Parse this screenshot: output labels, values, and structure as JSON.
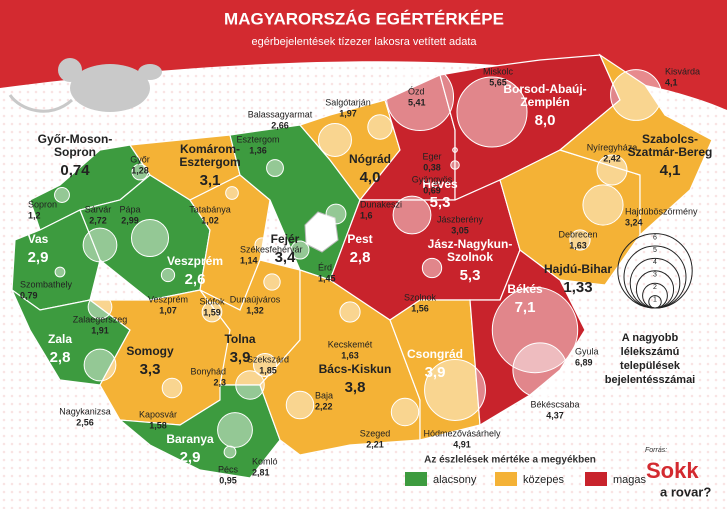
{
  "header": {
    "title": "MAGYARORSZÁG EGÉRTÉRKÉPE",
    "subtitle": "egérbejelentések tízezer lakosra vetített adata"
  },
  "counties": [
    {
      "name_lines": [
        "Győr-Moson-",
        "Sopron"
      ],
      "value_label": "0,74",
      "color": "#3d9b3f"
    },
    {
      "name_lines": [
        "Vas"
      ],
      "value_label": "2,9",
      "color": "#3d9b3f"
    },
    {
      "name_lines": [
        "Veszprém"
      ],
      "value_label": "2,6",
      "color": "#3d9b3f"
    },
    {
      "name_lines": [
        "Komárom-",
        "Esztergom"
      ],
      "value_label": "3,1",
      "color": "#f4b236"
    },
    {
      "name_lines": [
        "Zala"
      ],
      "value_label": "2,8",
      "color": "#3d9b3f"
    },
    {
      "name_lines": [
        "Somogy"
      ],
      "value_label": "3,3",
      "color": "#f4b236"
    },
    {
      "name_lines": [
        "Fejér"
      ],
      "value_label": "3,4",
      "color": "#f4b236"
    },
    {
      "name_lines": [
        "Pest"
      ],
      "value_label": "2,8",
      "color": "#3d9b3f"
    },
    {
      "name_lines": [
        "Nógrád"
      ],
      "value_label": "4,0",
      "color": "#f4b236"
    },
    {
      "name_lines": [
        "Tolna"
      ],
      "value_label": "3,9",
      "color": "#f4b236"
    },
    {
      "name_lines": [
        "Baranya"
      ],
      "value_label": "2,9",
      "color": "#3d9b3f"
    },
    {
      "name_lines": [
        "Bács-Kiskun"
      ],
      "value_label": "3,8",
      "color": "#f4b236"
    },
    {
      "name_lines": [
        "Heves"
      ],
      "value_label": "5,3",
      "color": "#c8232c"
    },
    {
      "name_lines": [
        "Borsod-Abaúj-",
        "Zemplén"
      ],
      "value_label": "8,0",
      "color": "#c8232c"
    },
    {
      "name_lines": [
        "Jász-Nagykun-",
        "Szolnok"
      ],
      "value_label": "5,3",
      "color": "#c8232c"
    },
    {
      "name_lines": [
        "Csongrád"
      ],
      "value_label": "3,9",
      "color": "#f4b236"
    },
    {
      "name_lines": [
        "Békés"
      ],
      "value_label": "7,1",
      "color": "#c8232c"
    },
    {
      "name_lines": [
        "Hajdú-Bihar"
      ],
      "value_label": "1,33",
      "color": "#f4b236"
    },
    {
      "name_lines": [
        "Szabolcs-",
        "Szatmár-Bereg"
      ],
      "value_label": "4,1",
      "color": "#f4b236"
    }
  ],
  "cities": [
    {
      "name": "Sopron",
      "value": 1.2,
      "value_label": "1,2"
    },
    {
      "name": "Győr",
      "value": 1.28,
      "value_label": "1,28"
    },
    {
      "name": "Sárvár",
      "value": 2.72,
      "value_label": "2,72"
    },
    {
      "name": "Pápa",
      "value": 2.99,
      "value_label": "2,99"
    },
    {
      "name": "Szombathely",
      "value": 0.79,
      "value_label": "0,79"
    },
    {
      "name": "Veszprém",
      "value": 1.07,
      "value_label": "1,07"
    },
    {
      "name": "Zalaegerszeg",
      "value": 1.91,
      "value_label": "1,91"
    },
    {
      "name": "Nagykanizsa",
      "value": 2.56,
      "value_label": "2,56"
    },
    {
      "name": "Siófok",
      "value": 1.59,
      "value_label": "1,59"
    },
    {
      "name": "Tatabánya",
      "value": 1.02,
      "value_label": "1,02"
    },
    {
      "name": "Esztergom",
      "value": 1.36,
      "value_label": "1,36"
    },
    {
      "name": "Balassagyarmat",
      "value": 2.66,
      "value_label": "2,66"
    },
    {
      "name": "Salgótarján",
      "value": 1.97,
      "value_label": "1,97"
    },
    {
      "name": "Ózd",
      "value": 5.41,
      "value_label": "5,41"
    },
    {
      "name": "Miskolc",
      "value": 5.65,
      "value_label": "5,65"
    },
    {
      "name": "Kisvárda",
      "value": 4.1,
      "value_label": "4,1"
    },
    {
      "name": "Eger",
      "value": 0.38,
      "value_label": "0,38"
    },
    {
      "name": "Gyöngyös",
      "value": 0.69,
      "value_label": "0,69"
    },
    {
      "name": "Nyíregyháza",
      "value": 2.42,
      "value_label": "2,42"
    },
    {
      "name": "Hajdúböszörmény",
      "value": 3.24,
      "value_label": "3,24"
    },
    {
      "name": "Debrecen",
      "value": 1.63,
      "value_label": "1,63"
    },
    {
      "name": "Székesfehérvár",
      "value": 1.14,
      "value_label": "1,14"
    },
    {
      "name": "Dunakeszi",
      "value": 1.6,
      "value_label": "1,6"
    },
    {
      "name": "Érd",
      "value": 1.45,
      "value_label": "1,45"
    },
    {
      "name": "Dunaújváros",
      "value": 1.32,
      "value_label": "1,32"
    },
    {
      "name": "Jászberény",
      "value": 3.05,
      "value_label": "3,05"
    },
    {
      "name": "Szolnok",
      "value": 1.56,
      "value_label": "1,56"
    },
    {
      "name": "Kecskemét",
      "value": 1.63,
      "value_label": "1,63"
    },
    {
      "name": "Gyula",
      "value": 6.89,
      "value_label": "6,89"
    },
    {
      "name": "Békéscsaba",
      "value": 4.37,
      "value_label": "4,37"
    },
    {
      "name": "Szekszárd",
      "value": 1.85,
      "value_label": "1,85"
    },
    {
      "name": "Bonyhád",
      "value": 2.3,
      "value_label": "2,3"
    },
    {
      "name": "Kaposvár",
      "value": 1.58,
      "value_label": "1,58"
    },
    {
      "name": "Baja",
      "value": 2.22,
      "value_label": "2,22"
    },
    {
      "name": "Szeged",
      "value": 2.21,
      "value_label": "2,21"
    },
    {
      "name": "Hódmezővásárhely",
      "value": 4.91,
      "value_label": "4,91"
    },
    {
      "name": "Pécs",
      "value": 0.95,
      "value_label": "0,95"
    },
    {
      "name": "Komló",
      "value": 2.81,
      "value_label": "2,81"
    }
  ],
  "size_legend": {
    "values": [
      6,
      5,
      4,
      3,
      2,
      1
    ],
    "text_lines": [
      "A nagyobb",
      "lélekszámú",
      "települések",
      "bejelentésszámai"
    ]
  },
  "legend": {
    "title": "Az észlelések mértéke a megyékben",
    "items": [
      {
        "label": "alacsony",
        "color": "#3d9b3f"
      },
      {
        "label": "közepes",
        "color": "#f4b236"
      },
      {
        "label": "magas",
        "color": "#c8232c"
      }
    ]
  },
  "source": {
    "label": "Forrás:",
    "logo": "Sokk",
    "tagline": "a rovar?"
  }
}
